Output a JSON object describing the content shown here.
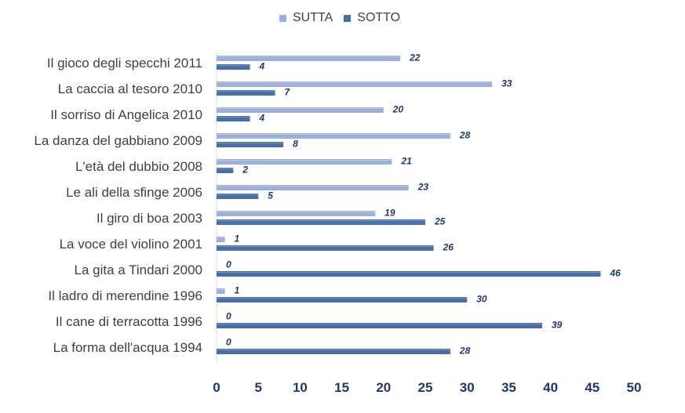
{
  "chart_data": {
    "type": "bar",
    "orientation": "horizontal",
    "categories": [
      "Il gioco degli specchi 2011",
      "La caccia al tesoro 2010",
      "Il sorriso di Angelica 2010",
      "La danza del gabbiano 2009",
      "L'età del dubbio 2008",
      "Le ali della sfinge 2006",
      "Il giro di boa 2003",
      "La voce del violino 2001",
      "La gita a Tindari 2000",
      "Il ladro di merendine 1996",
      "Il cane di terracotta 1996",
      "La forma dell'acqua 1994"
    ],
    "series": [
      {
        "name": "SUTTA",
        "color": "#9fb0d8",
        "values": [
          22,
          33,
          20,
          28,
          21,
          23,
          19,
          1,
          0,
          1,
          0,
          0
        ]
      },
      {
        "name": "SOTTO",
        "color": "#4a6fa5",
        "values": [
          4,
          7,
          4,
          8,
          2,
          5,
          25,
          26,
          46,
          30,
          39,
          28
        ]
      }
    ],
    "xlim": [
      0,
      50
    ],
    "xticks": [
      "0",
      "5",
      "10",
      "15",
      "20",
      "25",
      "30",
      "35",
      "40",
      "45",
      "50"
    ],
    "xtick_values": [
      0,
      5,
      10,
      15,
      20,
      25,
      30,
      35,
      40,
      45,
      50
    ],
    "data_labels": true,
    "grid": false,
    "legend_position": "top",
    "label_color": "#1f3864",
    "axis_tick_color": "#1f3864"
  }
}
